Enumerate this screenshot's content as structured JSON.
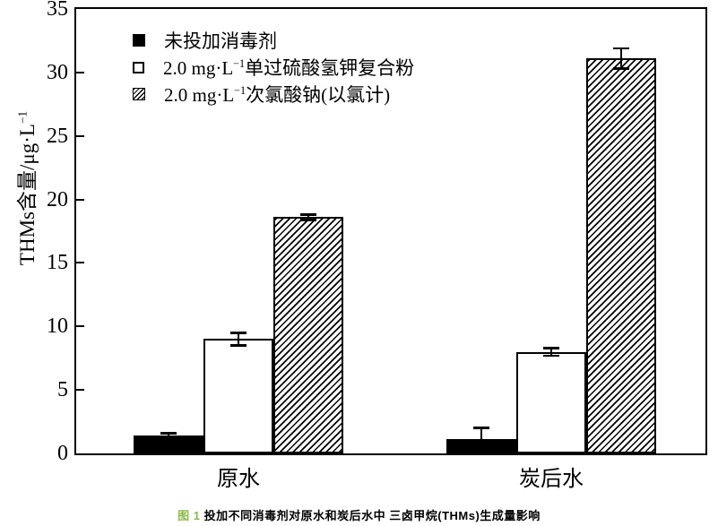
{
  "figure": {
    "caption": {
      "label": "图 1",
      "text": "投加不同消毒剂对原水和炭后水中 三卤甲烷(THMs)生成量影响",
      "label_color": "#8cbb44"
    }
  },
  "chart_data": {
    "type": "bar",
    "title": "",
    "categories": [
      "原水",
      "炭后水"
    ],
    "series": [
      {
        "name": "未投加消毒剂",
        "name_parts": {
          "prefix": "",
          "sup": "",
          "text": "未投加消毒剂"
        },
        "style": "solid-black",
        "values": [
          1.4,
          1.1
        ],
        "errors": [
          0.2,
          0.9
        ]
      },
      {
        "name": "2.0 mg·L⁻¹单过硫酸氢钾复合粉",
        "name_parts": {
          "prefix": "2.0 mg·L",
          "sup": "−1",
          "text": "单过硫酸氢钾复合粉"
        },
        "style": "open-white",
        "values": [
          9.0,
          8.0
        ],
        "errors": [
          0.5,
          0.3
        ]
      },
      {
        "name": "2.0 mg·L⁻¹次氯酸钠(以氯计)",
        "name_parts": {
          "prefix": "2.0 mg·L",
          "sup": "−1",
          "text": "次氯酸钠(以氯计)"
        },
        "style": "hatched",
        "values": [
          18.6,
          31.1
        ],
        "errors": [
          0.2,
          0.8
        ]
      }
    ],
    "xlabel": "",
    "ylabel": "THMs含量/μg·L⁻¹",
    "ylabel_parts": {
      "prefix": "THMs含量/μg·L",
      "sup": "−1"
    },
    "ylim": [
      0,
      35
    ],
    "yticks": [
      0,
      5,
      10,
      15,
      20,
      25,
      30,
      35
    ],
    "legend_position": "top-left",
    "grid": false,
    "colors": {
      "bar_fill": "#000000",
      "bar_outline": "#000000",
      "background": "#ffffff"
    }
  }
}
